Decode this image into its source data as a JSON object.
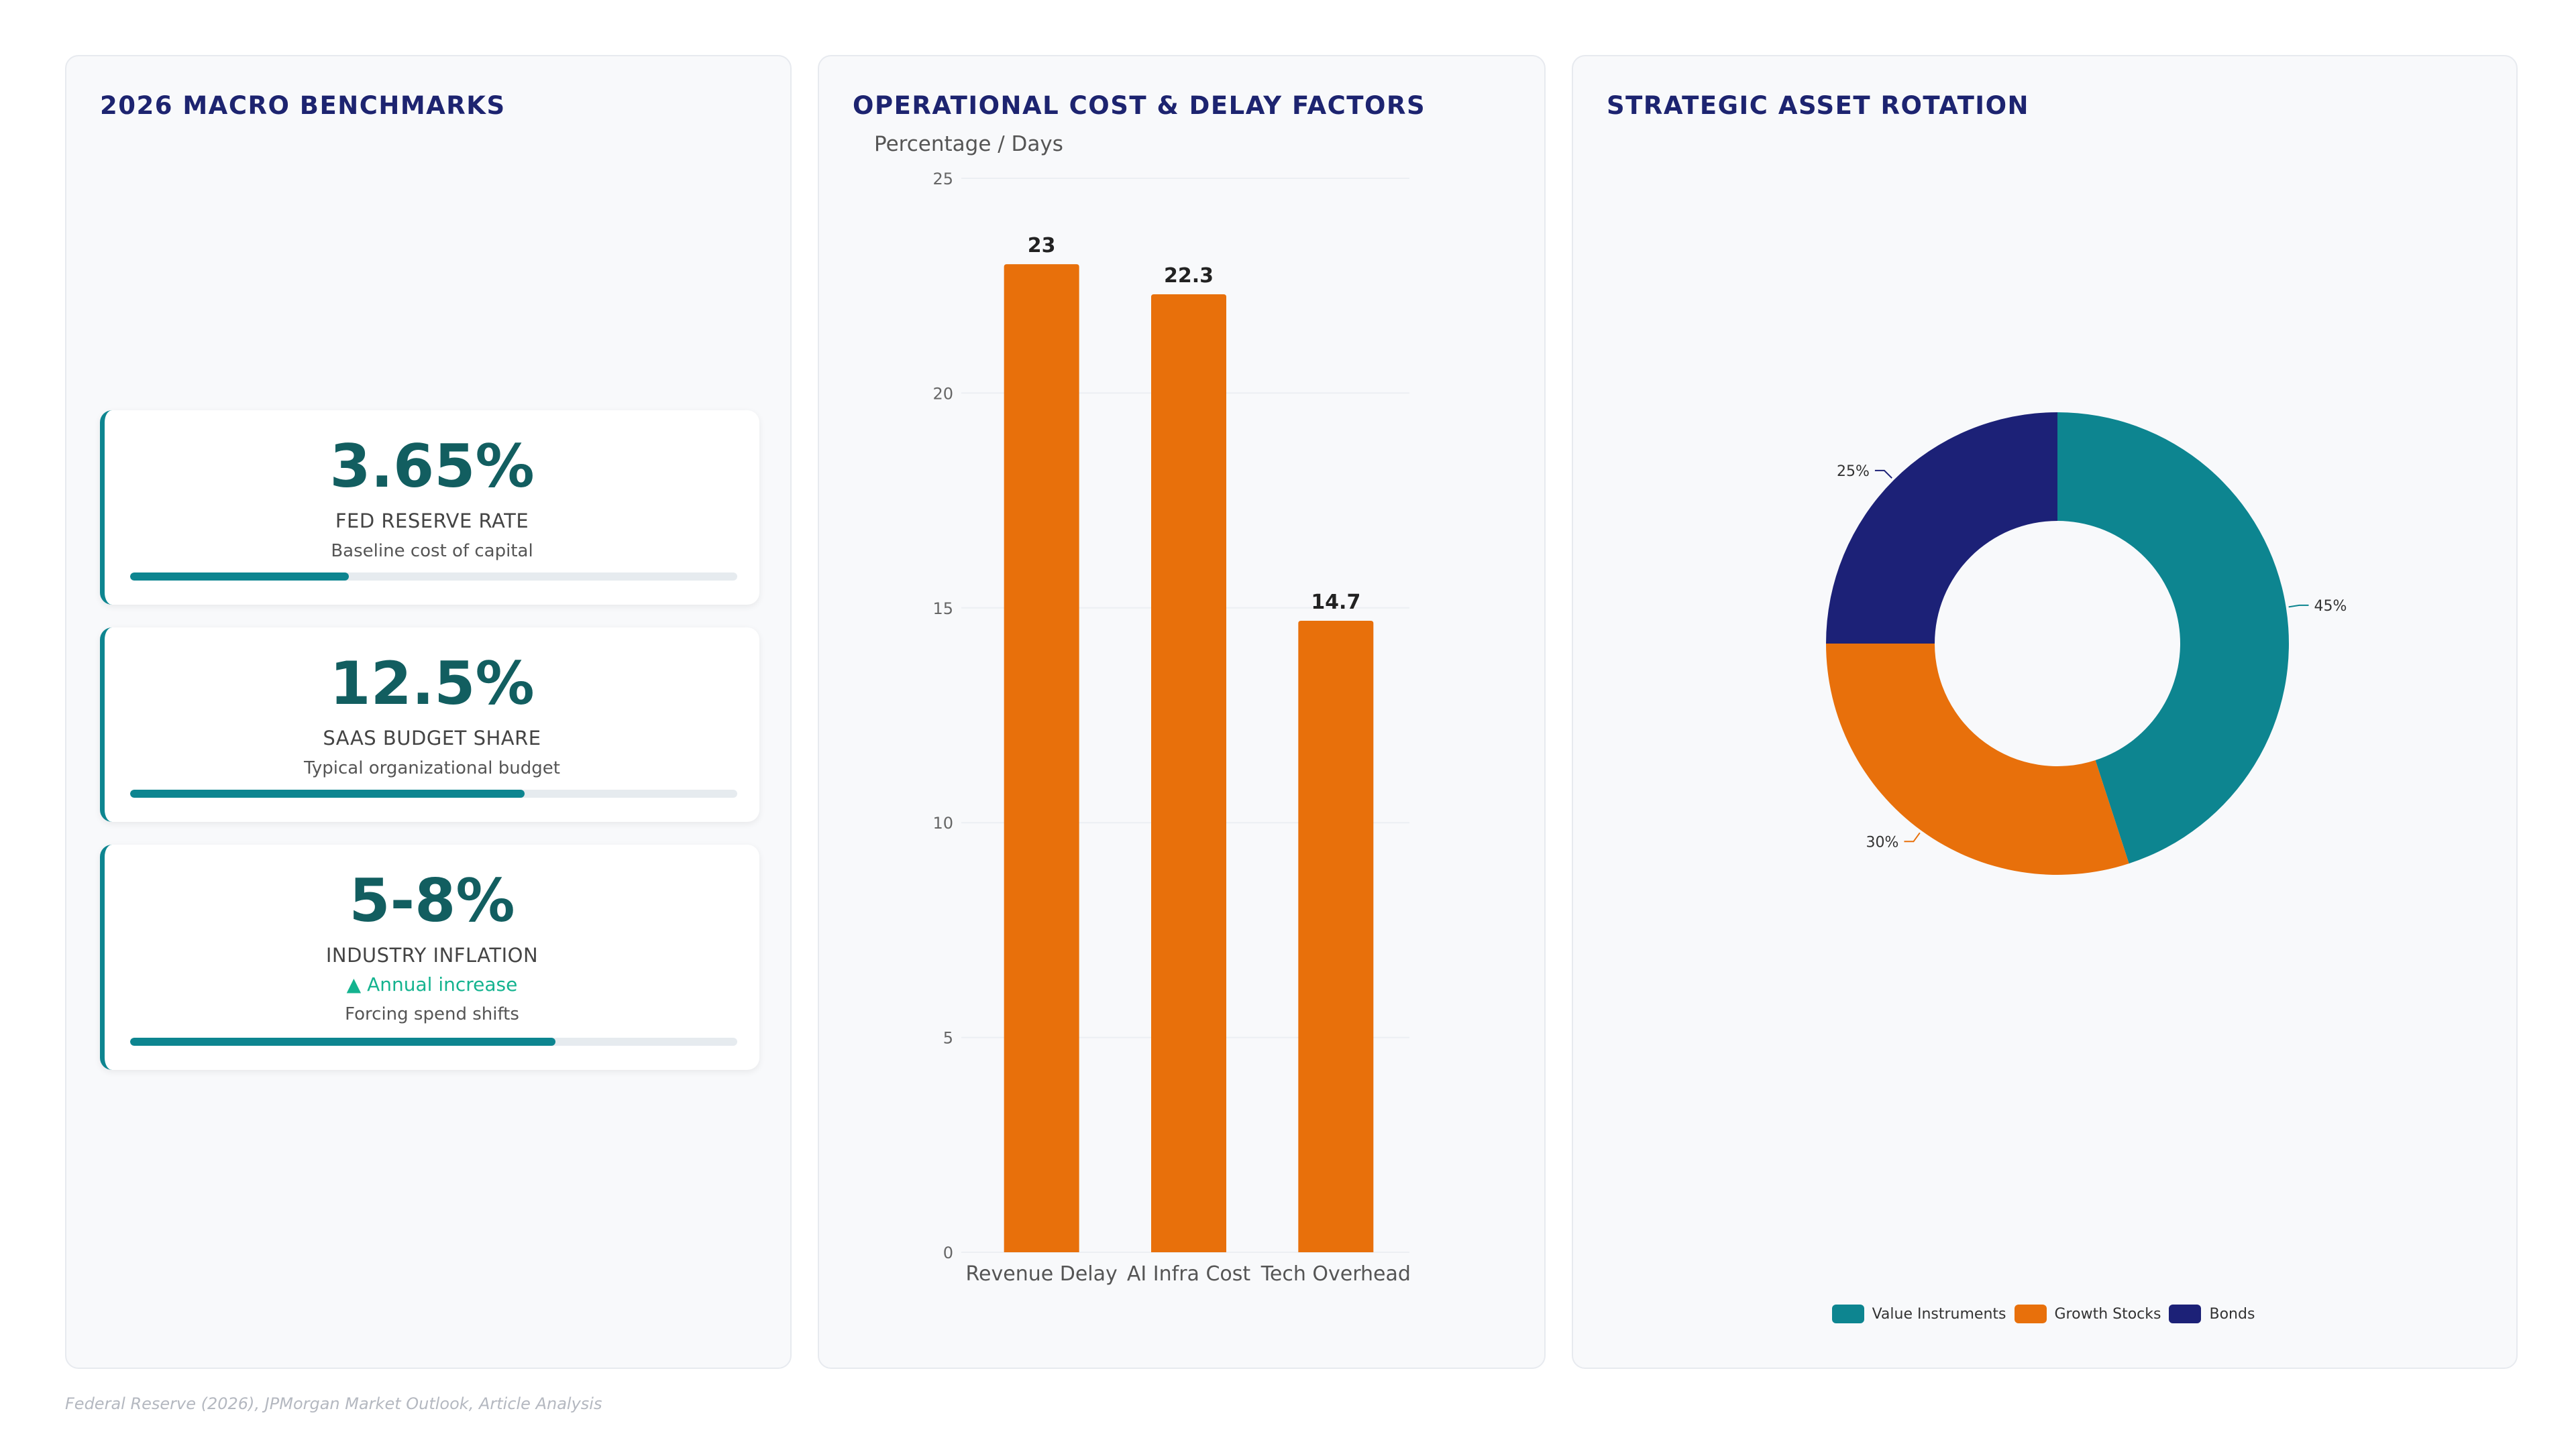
{
  "colors": {
    "teal": "#0d8590",
    "orange": "#e8700b",
    "navy": "#1c2177",
    "title": "#1d2470",
    "kpi_value": "#125e60",
    "trend": "#14b38f"
  },
  "benchmarks": {
    "title": "2026 MACRO BENCHMARKS",
    "cards": [
      {
        "value": "3.65%",
        "label": "FED RESERVE RATE",
        "trend": "",
        "subtitle": "Baseline cost of capital",
        "progress": 0.36
      },
      {
        "value": "12.5%",
        "label": "SAAS BUDGET SHARE",
        "trend": "",
        "subtitle": "Typical organizational budget",
        "progress": 0.65
      },
      {
        "value": "5-8%",
        "label": "INDUSTRY INFLATION",
        "trend": "▲ Annual increase",
        "subtitle": "Forcing spend shifts",
        "progress": 0.7
      }
    ]
  },
  "cost_chart": {
    "title": "OPERATIONAL COST & DELAY FACTORS"
  },
  "allocation_chart": {
    "title": "STRATEGIC ASSET ROTATION"
  },
  "chart_data": [
    {
      "type": "bar",
      "title": "OPERATIONAL COST & DELAY FACTORS",
      "ylabel": "Percentage / Days",
      "xlabel": "",
      "categories": [
        "Revenue Delay",
        "AI Infra Cost",
        "Tech Overhead"
      ],
      "values": [
        23,
        22.3,
        14.7
      ],
      "data_labels": [
        "23",
        "22.3",
        "14.7"
      ],
      "ylim": [
        0,
        25
      ],
      "yticks": [
        0,
        5,
        10,
        15,
        20,
        25
      ],
      "grid": true,
      "color": "#e8700b"
    },
    {
      "type": "pie",
      "subtype": "donut",
      "title": "STRATEGIC ASSET ROTATION",
      "labels": [
        "Value Instruments",
        "Growth Stocks",
        "Bonds"
      ],
      "values": [
        45,
        30,
        25
      ],
      "slice_labels": [
        "45%",
        "30%",
        "25%"
      ],
      "colors": [
        "#0d8590",
        "#e8700b",
        "#1c2177"
      ],
      "legend": "bottom"
    }
  ],
  "footer": {
    "source": "Federal Reserve (2026), JPMorgan Market Outlook, Article Analysis"
  }
}
